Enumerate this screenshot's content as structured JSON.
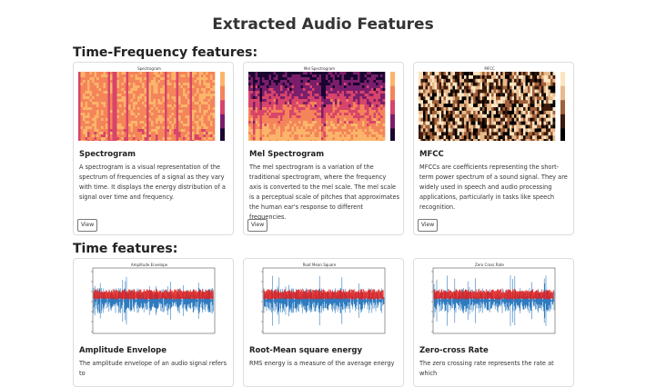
{
  "header": {
    "title": "Extracted Audio Features"
  },
  "sections": [
    {
      "heading": "Time-Frequency features:",
      "cards": [
        {
          "plot_title": "Spectrogram",
          "title": "Spectrogram",
          "text": "A spectrogram is a visual representation of the spectrum of frequencies of a signal as they vary with time. It displays the energy distribution of a signal over time and frequency.",
          "button": "View"
        },
        {
          "plot_title": "Mel Spectrogram",
          "title": "Mel Spectrogram",
          "text": "The mel spectrogram is a variation of the traditional spectrogram, where the frequency axis is converted to the mel scale. The mel scale is a perceptual scale of pitches that approximates the human ear's response to different frequencies.",
          "button": "View"
        },
        {
          "plot_title": "MFCC",
          "title": "MFCC",
          "text": "MFCCs are coefficients representing the short-term power spectrum of a sound signal. They are widely used in speech and audio processing applications, particularly in tasks like speech recognition.",
          "button": "View"
        }
      ]
    },
    {
      "heading": "Time features:",
      "cards": [
        {
          "plot_title": "Amplitude Envelope",
          "title": "Amplitude Envelope",
          "text": "The amplitude envelope of an audio signal refers to"
        },
        {
          "plot_title": "Root Mean Square",
          "title": "Root-Mean square energy",
          "text": "RMS energy is a measure of the average energy"
        },
        {
          "plot_title": "Zero Cross Rate",
          "title": "Zero-cross Rate",
          "text": "The zero crossing rate represents the rate at which"
        }
      ]
    }
  ]
}
